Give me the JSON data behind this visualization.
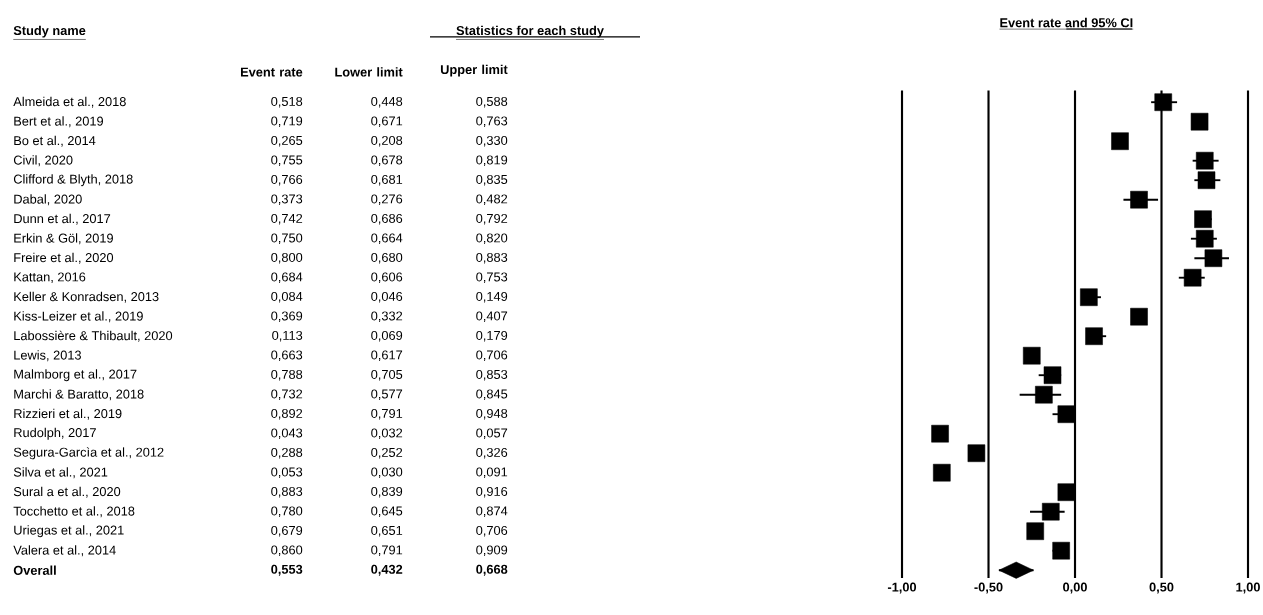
{
  "chart_data": [
    {
      "type": "other",
      "title": "Statistics for each study",
      "annotations": [
        "Study name"
      ],
      "categories": [
        "Almeida et al., 2018",
        "Bert et al., 2019",
        "Bo et al., 2014",
        "Civil, 2020",
        "Clifford & Blyth, 2018",
        "Dabal, 2020",
        "Dunn et al., 2017",
        "Erkin & Göl, 2019",
        "Freire et al., 2020",
        "Kattan, 2016",
        "Keller & Konradsen, 2013",
        "Kiss-Leizer et al., 2019",
        "Labossière & Thibault, 2020",
        "Lewis, 2013",
        "Malmborg et al., 2017",
        "Marchi & Baratto, 2018",
        "Rizzieri et al., 2019",
        "Rudolph, 2017",
        "Segura-Garcìa et al., 2012",
        "Silva et al., 2021",
        "Sural a et al., 2020",
        "Tocchetto et al., 2018",
        "Uriegas et al., 2021",
        "Valera et al., 2014",
        "Overall"
      ],
      "series": [
        {
          "name": "Event rate",
          "values": [
            0.518,
            0.719,
            0.265,
            0.755,
            0.766,
            0.373,
            0.742,
            0.75,
            0.8,
            0.684,
            0.084,
            0.369,
            0.113,
            0.663,
            0.788,
            0.732,
            0.892,
            0.043,
            0.288,
            0.053,
            0.883,
            0.78,
            0.679,
            0.86,
            0.553
          ],
          "value_labels": [
            "0,518",
            "0,719",
            "0,265",
            "0,755",
            "0,766",
            "0,373",
            "0,742",
            "0,750",
            "0,800",
            "0,684",
            "0,084",
            "0,369",
            "0,113",
            "0,663",
            "0,788",
            "0,732",
            "0,892",
            "0,043",
            "0,288",
            "0,053",
            "0,883",
            "0,780",
            "0,679",
            "0,860",
            "0,553"
          ]
        },
        {
          "name": "Lower limit",
          "values": [
            0.448,
            0.671,
            0.208,
            0.678,
            0.681,
            0.276,
            0.686,
            0.664,
            0.68,
            0.606,
            0.046,
            0.332,
            0.069,
            0.617,
            0.705,
            0.577,
            0.791,
            0.032,
            0.252,
            0.03,
            0.839,
            0.645,
            0.651,
            0.791,
            0.432
          ],
          "value_labels": [
            "0,448",
            "0,671",
            "0,208",
            "0,678",
            "0,681",
            "0,276",
            "0,686",
            "0,664",
            "0,680",
            "0,606",
            "0,046",
            "0,332",
            "0,069",
            "0,617",
            "0,705",
            "0,577",
            "0,791",
            "0,032",
            "0,252",
            "0,030",
            "0,839",
            "0,645",
            "0,651",
            "0,791",
            "0,432"
          ]
        },
        {
          "name": "Upper limit",
          "values": [
            0.588,
            0.763,
            0.33,
            0.819,
            0.835,
            0.482,
            0.792,
            0.82,
            0.883,
            0.753,
            0.149,
            0.407,
            0.179,
            0.706,
            0.853,
            0.845,
            0.948,
            0.057,
            0.326,
            0.091,
            0.916,
            0.874,
            0.706,
            0.909,
            0.668
          ],
          "value_labels": [
            "0,588",
            "0,763",
            "0,330",
            "0,819",
            "0,835",
            "0,482",
            "0,792",
            "0,820",
            "0,883",
            "0,753",
            "0,149",
            "0,407",
            "0,179",
            "0,706",
            "0,853",
            "0,845",
            "0,948",
            "0,057",
            "0,326",
            "0,091",
            "0,916",
            "0,874",
            "0,706",
            "0,909",
            "0,668"
          ]
        }
      ]
    },
    {
      "type": "scatter",
      "title": "Event rate and 95% CI",
      "orientation": "horizontal",
      "grid": "x",
      "categories": [
        null,
        null,
        null,
        null,
        null,
        null,
        null,
        null,
        null,
        null,
        null,
        null,
        null,
        null,
        null,
        null,
        null,
        null,
        null,
        null,
        null,
        null,
        null,
        null,
        null
      ],
      "xlim": [
        -1,
        1
      ],
      "xticks": [
        {
          "value": -1,
          "label": "-1,00"
        },
        {
          "value": -0.5,
          "label": "-0,50"
        },
        {
          "value": 0,
          "label": "0,00"
        },
        {
          "value": 0.5,
          "label": "0,50"
        },
        {
          "value": 1,
          "label": "1,00"
        }
      ],
      "series": [
        {
          "color": "#000000",
          "marker": "square",
          "values": [
            0.51,
            0.72,
            0.26,
            0.75,
            0.76,
            0.37,
            0.74,
            0.75,
            0.8,
            0.68,
            0.08,
            0.37,
            0.11,
            -0.25,
            -0.13,
            -0.18,
            -0.05,
            -0.78,
            -0.57,
            -0.77,
            -0.05,
            -0.14,
            -0.23,
            -0.08,
            null
          ],
          "errors": [
            [
              0.44,
              0.59
            ],
            null,
            [
              0.22,
              0.3
            ],
            [
              0.68,
              0.83
            ],
            [
              0.69,
              0.84
            ],
            [
              0.28,
              0.48
            ],
            [
              0.7,
              0.79
            ],
            [
              0.67,
              0.82
            ],
            [
              0.69,
              0.89
            ],
            [
              0.6,
              0.75
            ],
            [
              0.04,
              0.15
            ],
            null,
            [
              0.11,
              0.18
            ],
            null,
            [
              -0.21,
              -0.08
            ],
            [
              -0.32,
              -0.08
            ],
            [
              -0.13,
              -0.01
            ],
            null,
            null,
            null,
            null,
            [
              -0.26,
              -0.06
            ],
            null,
            [
              -0.13,
              -0.08
            ],
            null
          ]
        },
        {
          "color": "#000000",
          "marker": "diamond",
          "values": [
            null,
            null,
            null,
            null,
            null,
            null,
            null,
            null,
            null,
            null,
            null,
            null,
            null,
            null,
            null,
            null,
            null,
            null,
            null,
            null,
            null,
            null,
            null,
            null,
            -0.34
          ],
          "errors": [
            null,
            null,
            null,
            null,
            null,
            null,
            null,
            null,
            null,
            null,
            null,
            null,
            null,
            null,
            null,
            null,
            null,
            null,
            null,
            null,
            null,
            null,
            null,
            null,
            [
              -0.44,
              -0.24
            ]
          ]
        }
      ]
    }
  ]
}
